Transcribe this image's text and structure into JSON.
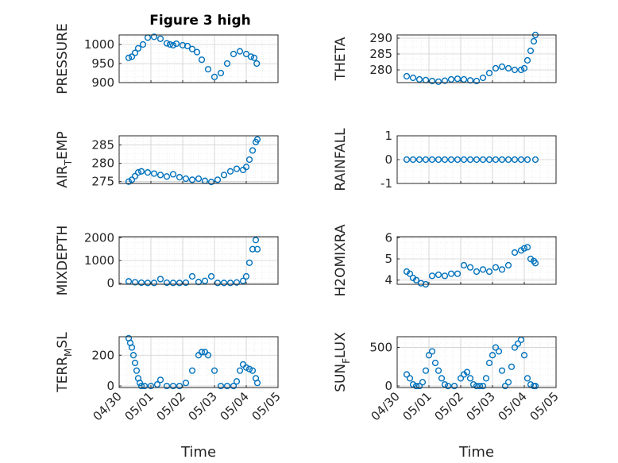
{
  "figure_title": "Figure 3 high",
  "colors": {
    "marker": "#0072bd",
    "axis": "#262626",
    "grid": "#dfdfdf"
  },
  "chart_data": [
    {
      "type": "scatter",
      "ylabel": "PRESSURE",
      "xlabel": "",
      "title": "Figure 3 high",
      "yticks": [
        900,
        950,
        1000
      ],
      "ytick_labels": [
        "900",
        "950",
        "1000"
      ],
      "ylim": [
        900,
        1025
      ],
      "xticks": [
        0,
        1,
        2,
        3,
        4,
        5
      ],
      "xtick_labels": [],
      "xlim": [
        0,
        5
      ],
      "x": [
        0.3,
        0.4,
        0.5,
        0.6,
        0.75,
        0.9,
        1.1,
        1.3,
        1.5,
        1.6,
        1.7,
        1.8,
        2.0,
        2.15,
        2.3,
        2.45,
        2.6,
        2.8,
        3.0,
        3.2,
        3.4,
        3.6,
        3.8,
        4.0,
        4.15,
        4.25,
        4.33
      ],
      "values": [
        965,
        968,
        978,
        990,
        1000,
        1018,
        1020,
        1015,
        1003,
        1000,
        998,
        1002,
        998,
        996,
        988,
        980,
        960,
        935,
        915,
        925,
        950,
        975,
        982,
        975,
        968,
        965,
        950
      ]
    },
    {
      "type": "scatter",
      "ylabel": "THETA",
      "xlabel": "",
      "yticks": [
        280,
        285,
        290
      ],
      "ytick_labels": [
        "280",
        "285",
        "290"
      ],
      "ylim": [
        276,
        291
      ],
      "xticks": [
        0,
        1,
        2,
        3,
        4,
        5
      ],
      "xtick_labels": [],
      "xlim": [
        0,
        5
      ],
      "x": [
        0.3,
        0.5,
        0.7,
        0.9,
        1.1,
        1.3,
        1.5,
        1.7,
        1.9,
        2.1,
        2.3,
        2.5,
        2.7,
        2.9,
        3.1,
        3.3,
        3.5,
        3.7,
        3.9,
        4.0,
        4.1,
        4.2,
        4.3,
        4.35
      ],
      "values": [
        278,
        277.5,
        277,
        276.8,
        276.5,
        276.3,
        276.6,
        277,
        277.2,
        277,
        276.7,
        276.5,
        277.5,
        279,
        280.5,
        281,
        280.5,
        280,
        280,
        280.5,
        283,
        286,
        289,
        291
      ]
    },
    {
      "type": "scatter",
      "ylabel": "AIR",
      "ylabel_sub": "T",
      "ylabel_rest": "EMP",
      "xlabel": "",
      "yticks": [
        275,
        280,
        285
      ],
      "ytick_labels": [
        "275",
        "280",
        "285"
      ],
      "ylim": [
        274.5,
        287.5
      ],
      "xticks": [
        0,
        1,
        2,
        3,
        4,
        5
      ],
      "xtick_labels": [],
      "xlim": [
        0,
        5
      ],
      "x": [
        0.3,
        0.4,
        0.5,
        0.6,
        0.7,
        0.9,
        1.1,
        1.3,
        1.5,
        1.7,
        1.9,
        2.1,
        2.3,
        2.5,
        2.7,
        2.9,
        3.1,
        3.3,
        3.5,
        3.7,
        3.9,
        4.0,
        4.1,
        4.2,
        4.3,
        4.35
      ],
      "values": [
        275,
        275.5,
        276.5,
        277.5,
        277.8,
        277.5,
        277.2,
        276.8,
        276.4,
        277,
        276.2,
        275.8,
        275.5,
        275.8,
        275.2,
        274.9,
        275.5,
        276.8,
        277.8,
        278.5,
        278.2,
        279,
        281,
        283.5,
        285.8,
        286.5
      ]
    },
    {
      "type": "scatter",
      "ylabel": "RAINFALL",
      "xlabel": "",
      "yticks": [
        -1,
        0,
        1
      ],
      "ytick_labels": [
        "-1",
        "0",
        "1"
      ],
      "ylim": [
        -1,
        1
      ],
      "xticks": [
        0,
        1,
        2,
        3,
        4,
        5
      ],
      "xtick_labels": [],
      "xlim": [
        0,
        5
      ],
      "x": [
        0.3,
        0.5,
        0.7,
        0.9,
        1.1,
        1.3,
        1.5,
        1.7,
        1.9,
        2.1,
        2.3,
        2.5,
        2.7,
        2.9,
        3.1,
        3.3,
        3.5,
        3.7,
        3.9,
        4.1,
        4.35
      ],
      "values": [
        0,
        0,
        0,
        0,
        0,
        0,
        0,
        0,
        0,
        0,
        0,
        0,
        0,
        0,
        0,
        0,
        0,
        0,
        0,
        0,
        0
      ]
    },
    {
      "type": "scatter",
      "ylabel": "MIXDEPTH",
      "xlabel": "",
      "yticks": [
        0,
        1000,
        2000
      ],
      "ytick_labels": [
        "0",
        "1000",
        "2000"
      ],
      "ylim": [
        -50,
        2050
      ],
      "xticks": [
        0,
        1,
        2,
        3,
        4,
        5
      ],
      "xtick_labels": [],
      "xlim": [
        0,
        5
      ],
      "x": [
        0.3,
        0.5,
        0.7,
        0.9,
        1.1,
        1.3,
        1.5,
        1.7,
        1.9,
        2.1,
        2.3,
        2.5,
        2.7,
        2.9,
        3.1,
        3.3,
        3.5,
        3.7,
        3.9,
        4.0,
        4.1,
        4.2,
        4.3,
        4.35
      ],
      "values": [
        80,
        40,
        20,
        10,
        10,
        180,
        20,
        10,
        10,
        20,
        300,
        50,
        100,
        300,
        10,
        10,
        10,
        30,
        100,
        300,
        900,
        1500,
        1900,
        1500
      ]
    },
    {
      "type": "scatter",
      "ylabel": "H2OMIXRA",
      "xlabel": "",
      "yticks": [
        4,
        5,
        6
      ],
      "ytick_labels": [
        "4",
        "5",
        "6"
      ],
      "ylim": [
        3.8,
        6.05
      ],
      "xticks": [
        0,
        1,
        2,
        3,
        4,
        5
      ],
      "xtick_labels": [],
      "xlim": [
        0,
        5
      ],
      "x": [
        0.3,
        0.4,
        0.5,
        0.6,
        0.75,
        0.9,
        1.1,
        1.3,
        1.5,
        1.7,
        1.9,
        2.1,
        2.3,
        2.5,
        2.7,
        2.9,
        3.1,
        3.3,
        3.5,
        3.7,
        3.9,
        4.0,
        4.1,
        4.2,
        4.3,
        4.35
      ],
      "values": [
        4.4,
        4.3,
        4.1,
        4.0,
        3.85,
        3.8,
        4.2,
        4.25,
        4.2,
        4.3,
        4.3,
        4.7,
        4.6,
        4.4,
        4.5,
        4.4,
        4.6,
        4.5,
        4.7,
        5.3,
        5.4,
        5.5,
        5.55,
        5.0,
        4.9,
        4.8
      ]
    },
    {
      "type": "scatter",
      "ylabel": "TERR",
      "ylabel_sub": "M",
      "ylabel_rest": "SL",
      "xlabel": "Time",
      "yticks": [
        0,
        200
      ],
      "ytick_labels": [
        "0",
        "200"
      ],
      "ylim": [
        -10,
        320
      ],
      "xticks": [
        0,
        1,
        2,
        3,
        4,
        5
      ],
      "xtick_labels": [
        "04/30",
        "05/01",
        "05/02",
        "05/03",
        "05/04",
        "05/05"
      ],
      "xlim": [
        0,
        5
      ],
      "x": [
        0.3,
        0.35,
        0.4,
        0.45,
        0.5,
        0.55,
        0.6,
        0.65,
        0.7,
        0.8,
        1.0,
        1.2,
        1.3,
        1.5,
        1.7,
        1.9,
        2.1,
        2.3,
        2.5,
        2.6,
        2.7,
        2.8,
        3.0,
        3.2,
        3.4,
        3.6,
        3.7,
        3.8,
        3.9,
        4.0,
        4.1,
        4.2,
        4.3,
        4.35
      ],
      "values": [
        310,
        280,
        250,
        200,
        150,
        100,
        50,
        20,
        0,
        0,
        0,
        10,
        40,
        0,
        0,
        0,
        20,
        100,
        200,
        220,
        220,
        200,
        100,
        0,
        0,
        0,
        30,
        100,
        140,
        120,
        110,
        100,
        50,
        20
      ]
    },
    {
      "type": "scatter",
      "ylabel": "SUN",
      "ylabel_sub": "F",
      "ylabel_rest": "LUX",
      "xlabel": "Time",
      "yticks": [
        0,
        500
      ],
      "ytick_labels": [
        "0",
        "500"
      ],
      "ylim": [
        -20,
        640
      ],
      "xticks": [
        0,
        1,
        2,
        3,
        4,
        5
      ],
      "xtick_labels": [
        "04/30",
        "05/01",
        "05/02",
        "05/03",
        "05/04",
        "05/05"
      ],
      "xlim": [
        0,
        5
      ],
      "x": [
        0.3,
        0.4,
        0.5,
        0.6,
        0.7,
        0.8,
        0.9,
        1.0,
        1.1,
        1.2,
        1.3,
        1.4,
        1.5,
        1.6,
        1.8,
        2.0,
        2.1,
        2.2,
        2.3,
        2.4,
        2.5,
        2.6,
        2.7,
        2.8,
        2.9,
        3.0,
        3.1,
        3.2,
        3.3,
        3.4,
        3.5,
        3.6,
        3.7,
        3.8,
        3.9,
        4.0,
        4.1,
        4.2,
        4.3,
        4.35
      ],
      "values": [
        150,
        100,
        20,
        0,
        0,
        50,
        200,
        400,
        450,
        300,
        200,
        100,
        20,
        0,
        0,
        100,
        150,
        180,
        100,
        20,
        0,
        0,
        0,
        100,
        300,
        400,
        500,
        450,
        200,
        0,
        50,
        250,
        500,
        550,
        600,
        400,
        100,
        20,
        0,
        0
      ]
    }
  ]
}
